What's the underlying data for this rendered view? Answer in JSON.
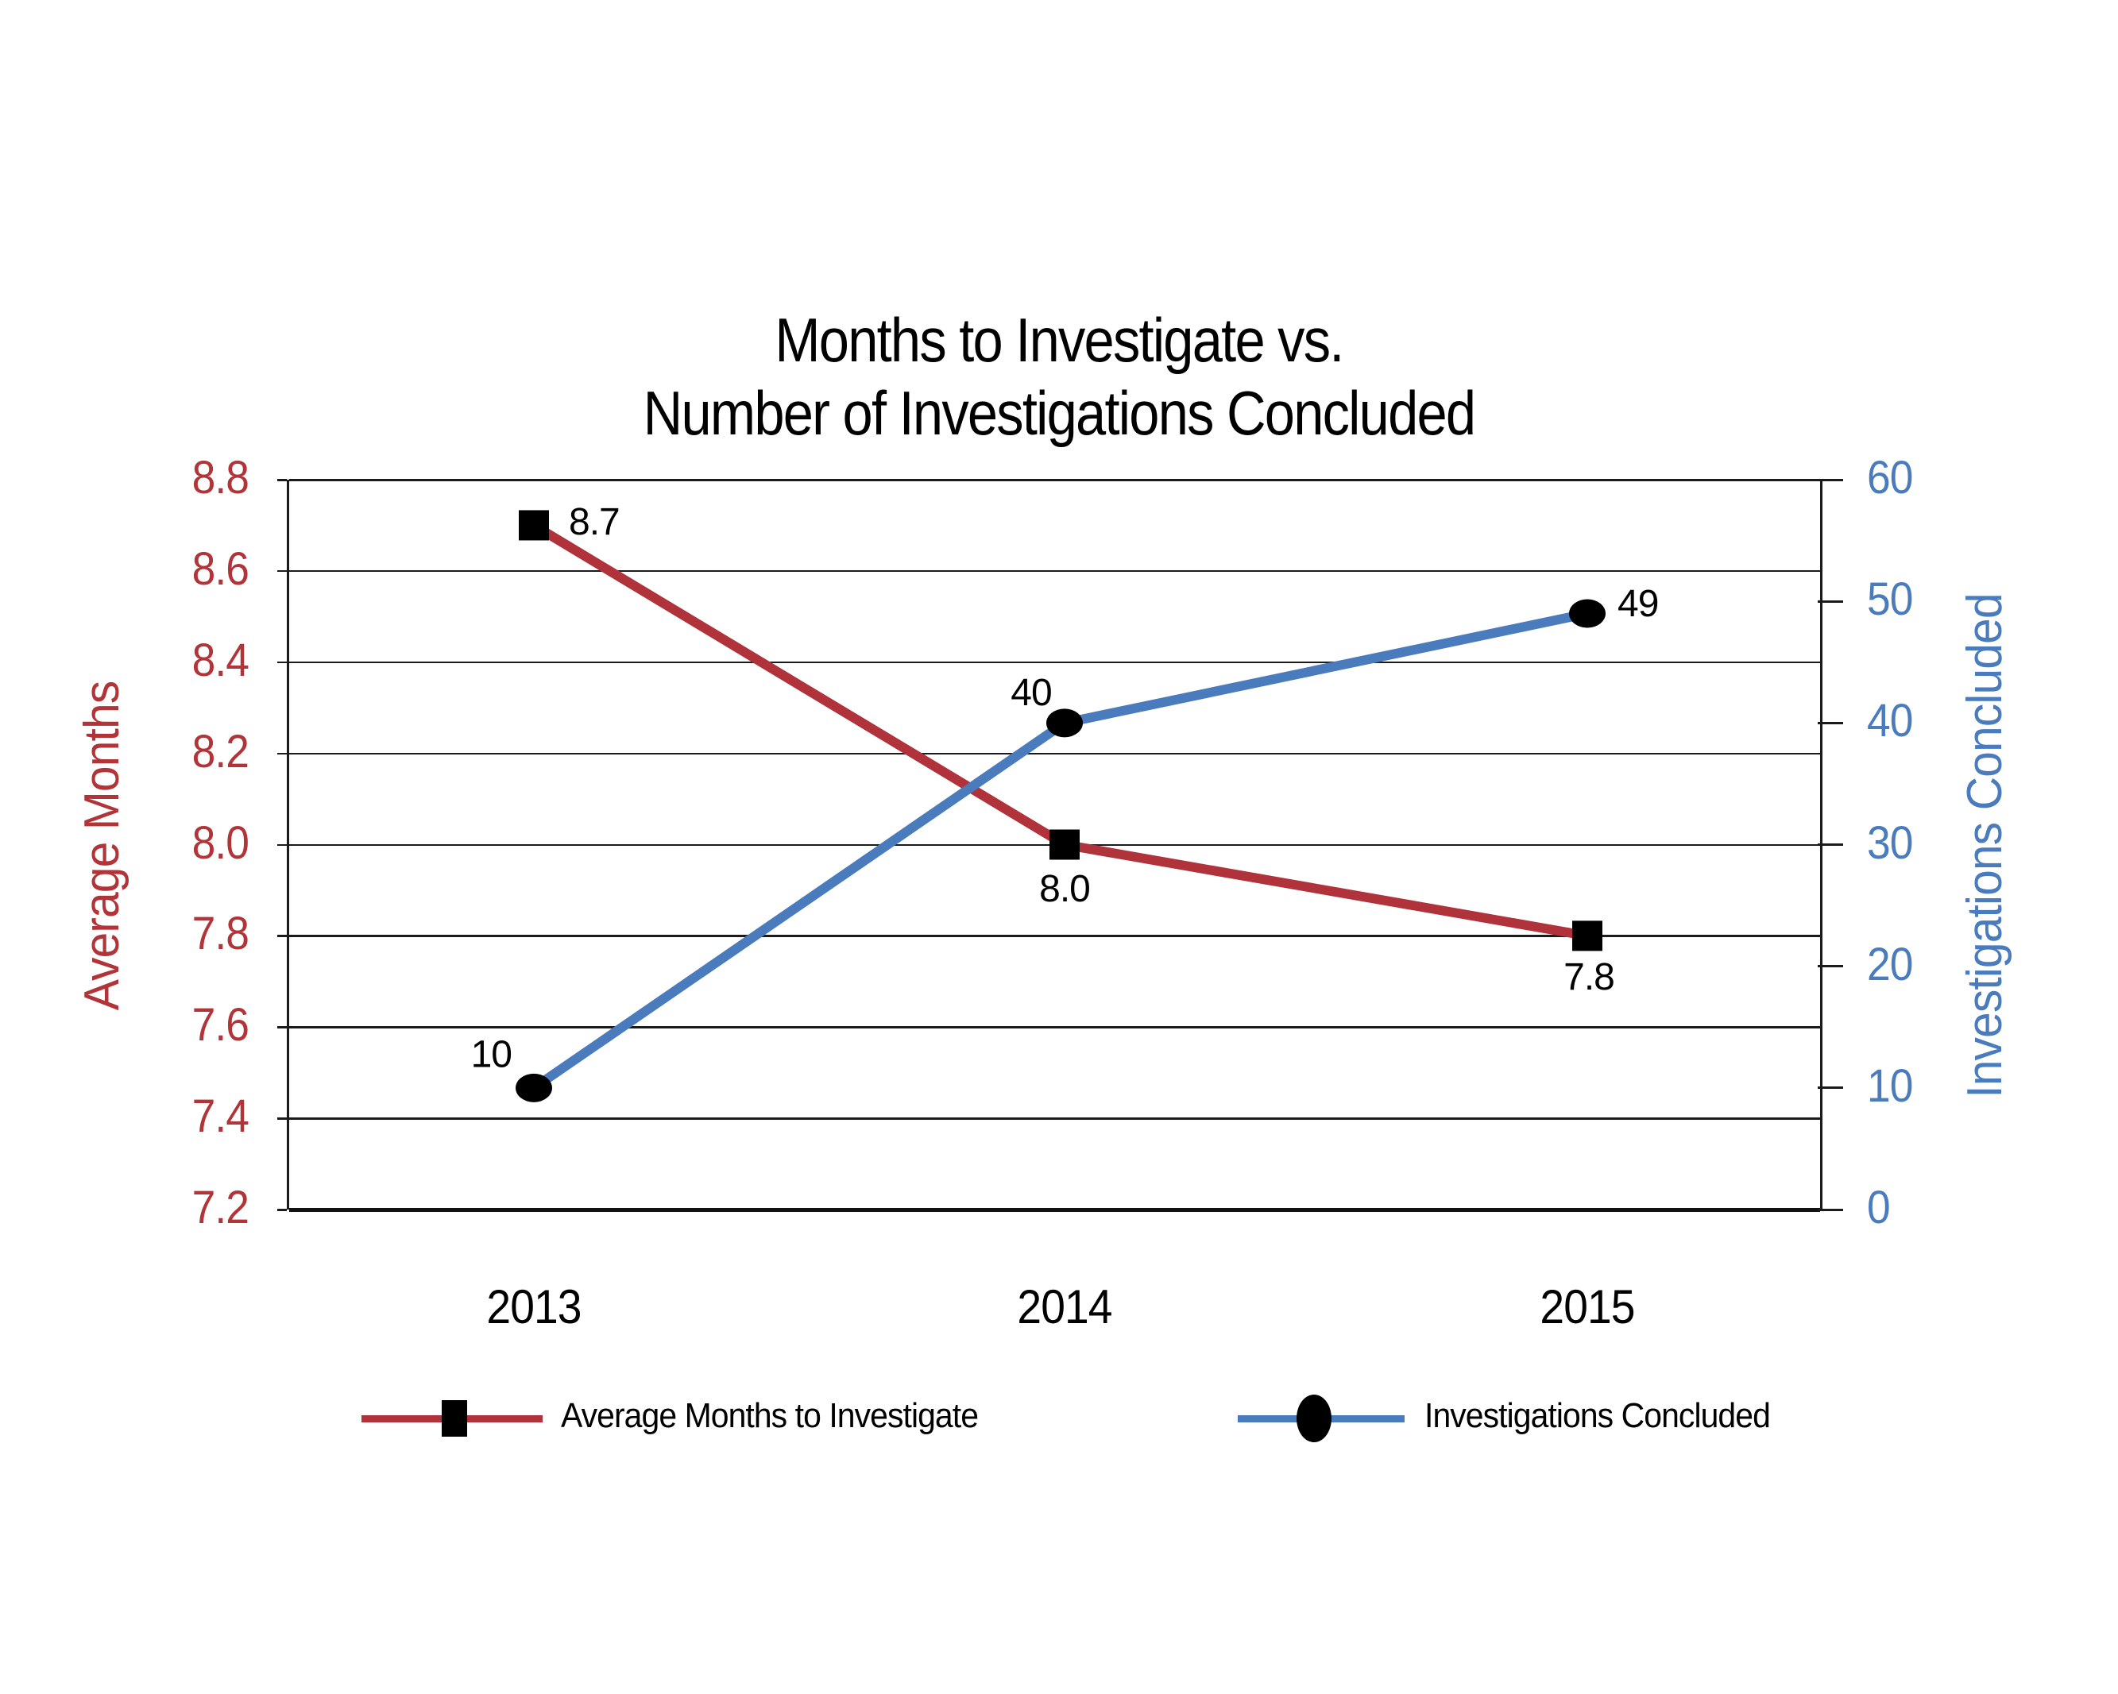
{
  "title": {
    "line1": "Months to Investigate vs.",
    "line2": "Number of Investigations Concluded"
  },
  "chart_data": {
    "type": "line",
    "categories": [
      "2013",
      "2014",
      "2015"
    ],
    "series": [
      {
        "name": "Average Months to Investigate",
        "axis": "left",
        "values": [
          8.7,
          8.0,
          7.8
        ],
        "point_labels": [
          "8.7",
          "8.0",
          "7.8"
        ],
        "color": "#B0323A",
        "marker": "square",
        "marker_color": "#000000"
      },
      {
        "name": "Investigations Concluded",
        "axis": "right",
        "values": [
          10,
          40,
          49
        ],
        "point_labels": [
          "10",
          "40",
          "49"
        ],
        "color": "#4A7BBD",
        "marker": "ellipse",
        "marker_color": "#000000"
      }
    ],
    "left_axis": {
      "title": "Average Months",
      "min": 7.2,
      "max": 8.8,
      "step": 0.2,
      "tick_labels": [
        "8.8",
        "8.6",
        "8.4",
        "8.2",
        "8.0",
        "7.8",
        "7.6",
        "7.4",
        "7.2"
      ],
      "color": "#B13439"
    },
    "right_axis": {
      "title": "Investigations Concluded",
      "min": 0,
      "max": 60,
      "step": 10,
      "tick_labels": [
        "60",
        "50",
        "40",
        "30",
        "20",
        "10",
        "0"
      ],
      "color": "#4A7BBD"
    },
    "grid": "horizontal-only",
    "legend_position": "bottom",
    "background": "#ffffff"
  },
  "legend": {
    "items": [
      {
        "label": "Average Months to Investigate",
        "color": "#B0323A",
        "marker": "square"
      },
      {
        "label": "Investigations Concluded",
        "color": "#4A7BBD",
        "marker": "ellipse"
      }
    ]
  }
}
